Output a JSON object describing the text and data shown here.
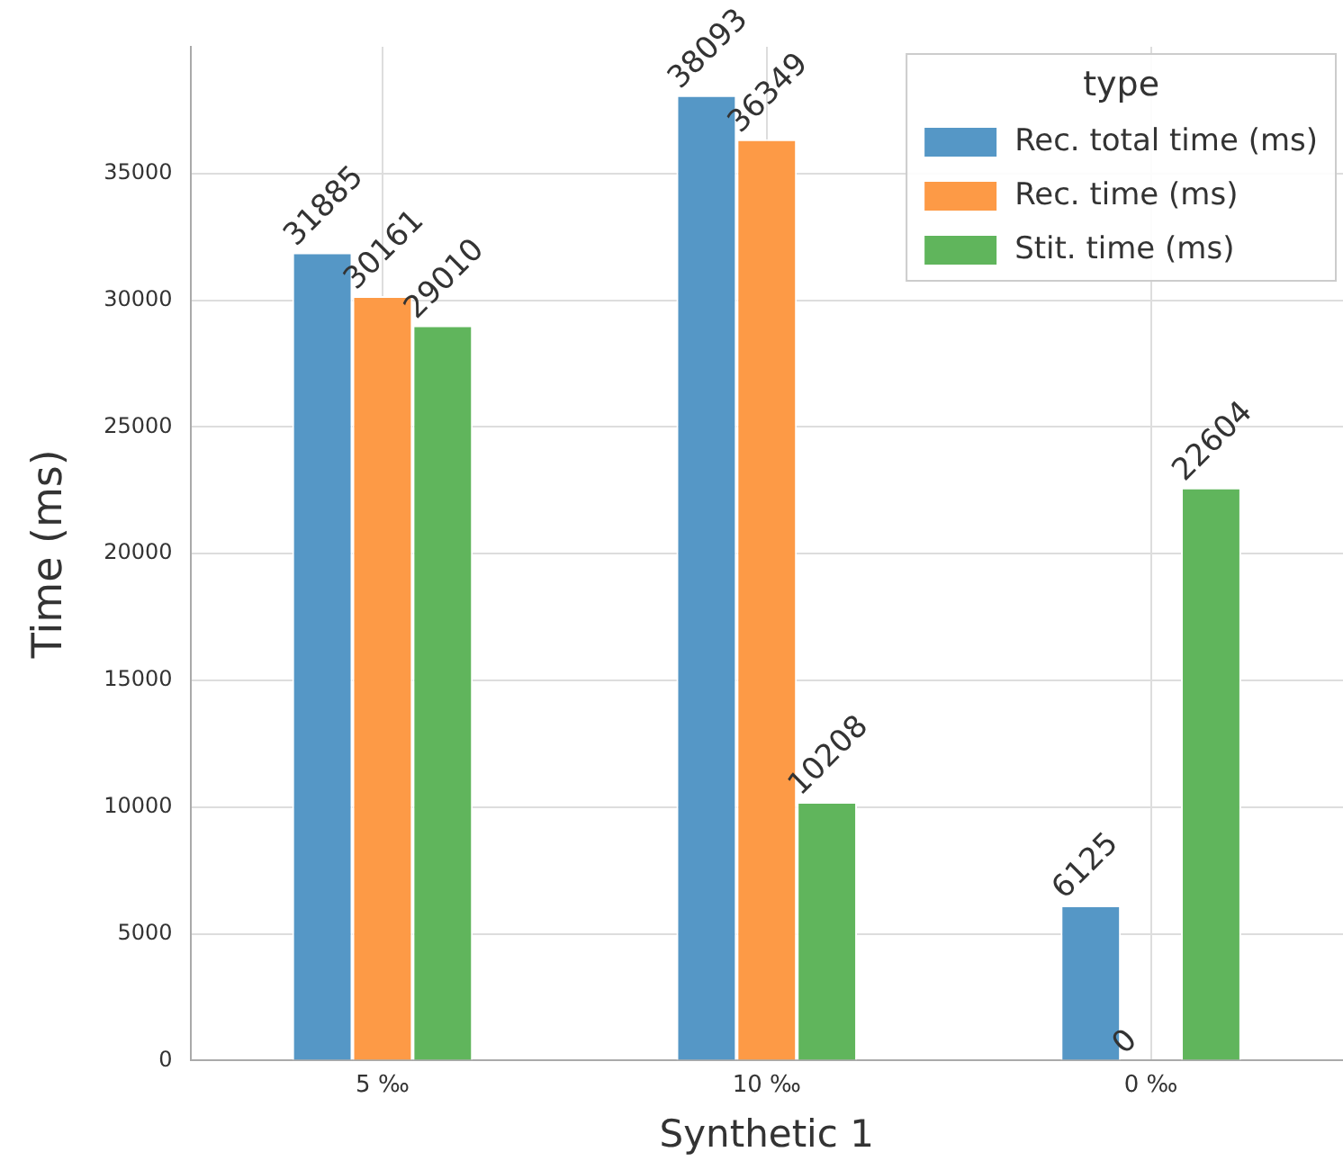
{
  "chart_data": {
    "type": "bar",
    "xlabel": "Synthetic 1",
    "ylabel": "Time (ms)",
    "legend_title": "type",
    "categories": [
      "5 ‰",
      "10 ‰",
      "0 ‰"
    ],
    "series": [
      {
        "name": "Rec. total time (ms)",
        "color": "#5597c6",
        "values": [
          31885,
          38093,
          6125
        ]
      },
      {
        "name": "Rec. time (ms)",
        "color": "#fd9a46",
        "values": [
          30161,
          36349,
          0
        ]
      },
      {
        "name": "Stit. time (ms)",
        "color": "#60b55c",
        "values": [
          29010,
          10208,
          22604
        ]
      }
    ],
    "ylim": [
      0,
      40000
    ],
    "yticks": [
      0,
      5000,
      10000,
      15000,
      20000,
      25000,
      30000,
      35000
    ],
    "grid": true,
    "legend": "top right",
    "data_labels": true
  }
}
